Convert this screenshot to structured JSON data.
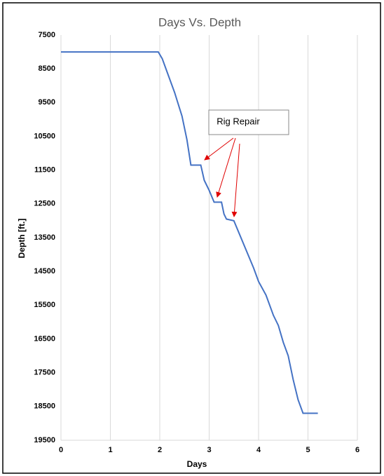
{
  "chart_data": {
    "type": "line",
    "title": "Days Vs. Depth",
    "x_label": "Days",
    "y_label": "Depth [ft.]",
    "annotation": "Rig Repair",
    "x": [
      0,
      1.97,
      2.05,
      2.15,
      2.3,
      2.45,
      2.55,
      2.63,
      2.83,
      2.9,
      3.0,
      3.1,
      3.25,
      3.3,
      3.35,
      3.5,
      3.7,
      3.9,
      4.0,
      4.15,
      4.3,
      4.4,
      4.5,
      4.6,
      4.7,
      4.8,
      4.9,
      5.2
    ],
    "series": [
      {
        "name": "Depth",
        "color": "#4472c4",
        "values": [
          8000,
          8000,
          8200,
          8600,
          9200,
          9900,
          10600,
          11350,
          11350,
          11800,
          12100,
          12450,
          12450,
          12800,
          12950,
          13000,
          13700,
          14400,
          14800,
          15200,
          15800,
          16100,
          16600,
          17000,
          17700,
          18300,
          18700,
          18700
        ]
      }
    ],
    "xlim": [
      0,
      6
    ],
    "xticks": [
      0,
      1,
      2,
      3,
      4,
      5,
      6
    ],
    "ylim": [
      7500,
      19500
    ],
    "yticks": [
      7500,
      8500,
      9500,
      10500,
      11500,
      12500,
      13500,
      14500,
      15500,
      16500,
      17500,
      18500,
      19500
    ],
    "y_inverted": true,
    "grid": "x"
  }
}
